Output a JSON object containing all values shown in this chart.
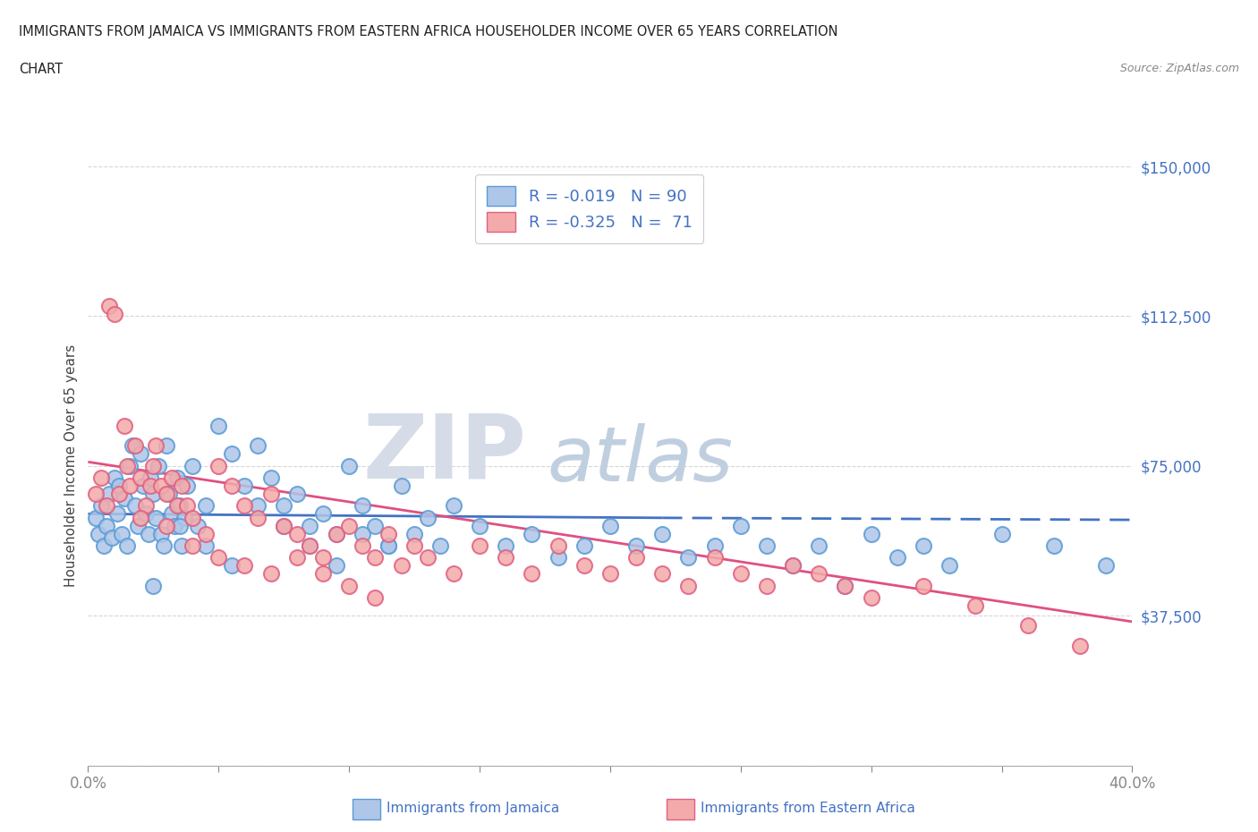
{
  "title_line1": "IMMIGRANTS FROM JAMAICA VS IMMIGRANTS FROM EASTERN AFRICA HOUSEHOLDER INCOME OVER 65 YEARS CORRELATION",
  "title_line2": "CHART",
  "source": "Source: ZipAtlas.com",
  "ylabel": "Householder Income Over 65 years",
  "xlim": [
    0.0,
    40.0
  ],
  "ylim": [
    0,
    150000
  ],
  "yticks": [
    0,
    37500,
    75000,
    112500,
    150000
  ],
  "ytick_labels": [
    "",
    "$37,500",
    "$75,000",
    "$112,500",
    "$150,000"
  ],
  "R_jamaica": -0.019,
  "N_jamaica": 90,
  "R_eastern": -0.325,
  "N_eastern": 71,
  "jamaica_color": "#aec6e8",
  "jamaica_edge": "#5b9bd5",
  "eastern_africa_color": "#f4aaaa",
  "eastern_africa_edge": "#e06080",
  "trend_blue": "#4472c4",
  "trend_pink": "#e05080",
  "watermark_zip": "ZIP",
  "watermark_atlas": "atlas",
  "watermark_color_zip": "#d0d8e8",
  "watermark_color_atlas": "#b8cce4",
  "legend_label_jamaica": "Immigrants from Jamaica",
  "legend_label_eastern": "Immigrants from Eastern Africa",
  "background_color": "#ffffff",
  "grid_color": "#cccccc",
  "title_color": "#222222",
  "axis_label_color": "#4472c4",
  "jamaica_x": [
    0.3,
    0.4,
    0.5,
    0.6,
    0.7,
    0.8,
    0.9,
    1.0,
    1.1,
    1.2,
    1.3,
    1.4,
    1.5,
    1.6,
    1.7,
    1.8,
    1.9,
    2.0,
    2.1,
    2.2,
    2.3,
    2.4,
    2.5,
    2.6,
    2.7,
    2.8,
    2.9,
    3.0,
    3.1,
    3.2,
    3.3,
    3.4,
    3.5,
    3.6,
    3.7,
    3.8,
    4.0,
    4.2,
    4.5,
    5.0,
    5.5,
    6.0,
    6.5,
    7.0,
    7.5,
    8.0,
    8.5,
    9.0,
    9.5,
    10.0,
    10.5,
    11.0,
    11.5,
    12.0,
    12.5,
    13.0,
    13.5,
    14.0,
    15.0,
    16.0,
    17.0,
    18.0,
    19.0,
    20.0,
    21.0,
    22.0,
    23.0,
    24.0,
    25.0,
    26.0,
    27.0,
    28.0,
    29.0,
    30.0,
    31.0,
    32.0,
    33.0,
    35.0,
    37.0,
    39.0,
    2.5,
    3.5,
    4.5,
    5.5,
    6.5,
    7.5,
    8.5,
    9.5,
    10.5,
    11.5
  ],
  "jamaica_y": [
    62000,
    58000,
    65000,
    55000,
    60000,
    68000,
    57000,
    72000,
    63000,
    70000,
    58000,
    67000,
    55000,
    75000,
    80000,
    65000,
    60000,
    78000,
    70000,
    63000,
    58000,
    72000,
    68000,
    62000,
    75000,
    58000,
    55000,
    80000,
    68000,
    63000,
    60000,
    72000,
    65000,
    55000,
    62000,
    70000,
    75000,
    60000,
    65000,
    85000,
    78000,
    70000,
    80000,
    72000,
    65000,
    68000,
    60000,
    63000,
    58000,
    75000,
    65000,
    60000,
    55000,
    70000,
    58000,
    62000,
    55000,
    65000,
    60000,
    55000,
    58000,
    52000,
    55000,
    60000,
    55000,
    58000,
    52000,
    55000,
    60000,
    55000,
    50000,
    55000,
    45000,
    58000,
    52000,
    55000,
    50000,
    58000,
    55000,
    50000,
    45000,
    60000,
    55000,
    50000,
    65000,
    60000,
    55000,
    50000,
    58000,
    55000
  ],
  "eastern_x": [
    0.3,
    0.5,
    0.7,
    0.8,
    1.0,
    1.2,
    1.4,
    1.5,
    1.6,
    1.8,
    2.0,
    2.2,
    2.4,
    2.5,
    2.6,
    2.8,
    3.0,
    3.2,
    3.4,
    3.6,
    3.8,
    4.0,
    4.5,
    5.0,
    5.5,
    6.0,
    6.5,
    7.0,
    7.5,
    8.0,
    8.5,
    9.0,
    9.5,
    10.0,
    10.5,
    11.0,
    11.5,
    12.0,
    12.5,
    13.0,
    14.0,
    15.0,
    16.0,
    17.0,
    18.0,
    19.0,
    20.0,
    21.0,
    22.0,
    23.0,
    24.0,
    25.0,
    26.0,
    27.0,
    28.0,
    29.0,
    30.0,
    32.0,
    34.0,
    36.0,
    38.0,
    2.0,
    3.0,
    4.0,
    5.0,
    6.0,
    7.0,
    8.0,
    9.0,
    10.0,
    11.0
  ],
  "eastern_y": [
    68000,
    72000,
    65000,
    115000,
    113000,
    68000,
    85000,
    75000,
    70000,
    80000,
    72000,
    65000,
    70000,
    75000,
    80000,
    70000,
    68000,
    72000,
    65000,
    70000,
    65000,
    62000,
    58000,
    75000,
    70000,
    65000,
    62000,
    68000,
    60000,
    58000,
    55000,
    52000,
    58000,
    60000,
    55000,
    52000,
    58000,
    50000,
    55000,
    52000,
    48000,
    55000,
    52000,
    48000,
    55000,
    50000,
    48000,
    52000,
    48000,
    45000,
    52000,
    48000,
    45000,
    50000,
    48000,
    45000,
    42000,
    45000,
    40000,
    35000,
    30000,
    62000,
    60000,
    55000,
    52000,
    50000,
    48000,
    52000,
    48000,
    45000,
    42000
  ],
  "trend_jam_x0": 0.0,
  "trend_jam_x_mid": 22.0,
  "trend_jam_x1": 40.0,
  "trend_jam_y0": 63000,
  "trend_jam_y_mid": 62000,
  "trend_jam_y1": 61500,
  "trend_east_x0": 0.0,
  "trend_east_x1": 40.0,
  "trend_east_y0": 76000,
  "trend_east_y1": 36000
}
